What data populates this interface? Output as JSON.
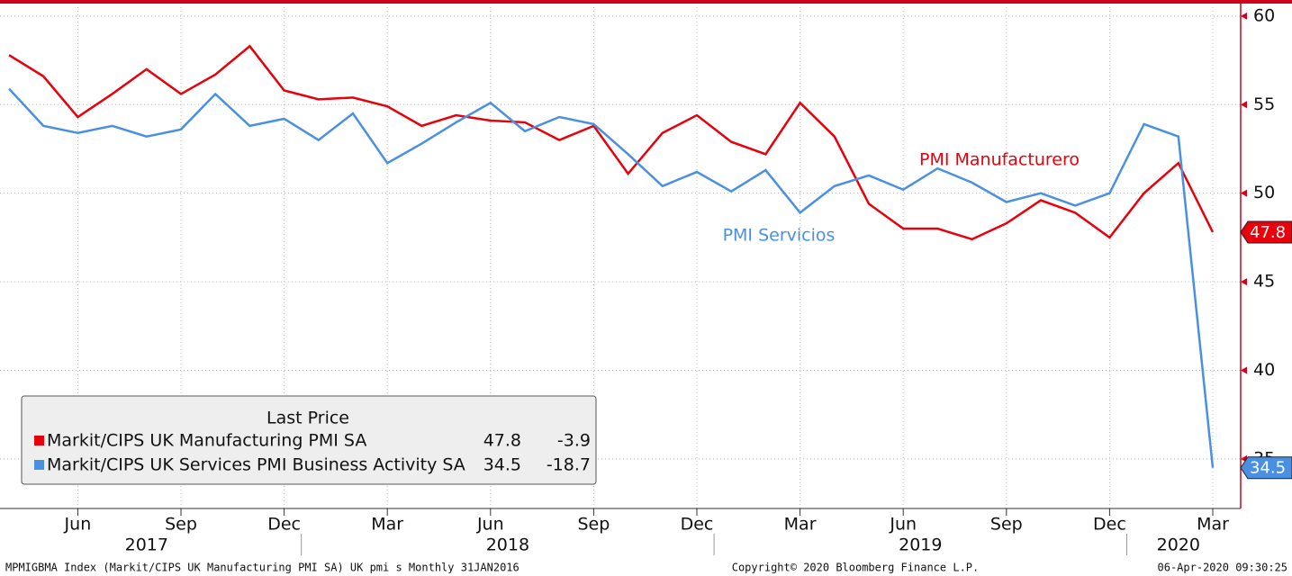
{
  "chart_data": {
    "type": "line",
    "x": [
      "2017-04",
      "2017-05",
      "2017-06",
      "2017-07",
      "2017-08",
      "2017-09",
      "2017-10",
      "2017-11",
      "2017-12",
      "2018-01",
      "2018-02",
      "2018-03",
      "2018-04",
      "2018-05",
      "2018-06",
      "2018-07",
      "2018-08",
      "2018-09",
      "2018-10",
      "2018-11",
      "2018-12",
      "2019-01",
      "2019-02",
      "2019-03",
      "2019-04",
      "2019-05",
      "2019-06",
      "2019-07",
      "2019-08",
      "2019-09",
      "2019-10",
      "2019-11",
      "2019-12",
      "2020-01",
      "2020-02",
      "2020-03"
    ],
    "series": [
      {
        "name": "Markit/CIPS UK Manufacturing PMI SA",
        "label": "PMI Manufacturero",
        "color": "#e8000b",
        "change": -3.9,
        "values": [
          57.8,
          56.6,
          54.3,
          55.6,
          57.0,
          55.6,
          56.7,
          58.3,
          55.8,
          55.3,
          55.4,
          54.9,
          53.8,
          54.4,
          54.1,
          54.0,
          53.0,
          53.8,
          51.1,
          53.4,
          54.4,
          52.9,
          52.2,
          55.1,
          53.2,
          49.4,
          48.0,
          48.0,
          47.4,
          48.3,
          49.6,
          48.9,
          47.5,
          50.0,
          51.7,
          47.8
        ]
      },
      {
        "name": "Markit/CIPS UK Services PMI Business Activity SA",
        "label": "PMI Servicios",
        "color": "#4a90e2",
        "change": -18.7,
        "values": [
          55.9,
          53.8,
          53.4,
          53.8,
          53.2,
          53.6,
          55.6,
          53.8,
          54.2,
          53.0,
          54.5,
          51.7,
          52.8,
          54.0,
          55.1,
          53.5,
          54.3,
          53.9,
          52.2,
          50.4,
          51.2,
          50.1,
          51.3,
          48.9,
          50.4,
          51.0,
          50.2,
          51.4,
          50.6,
          49.5,
          50.0,
          49.3,
          50.0,
          53.9,
          53.2,
          34.5
        ]
      }
    ],
    "ylim": [
      32.2,
      60.5
    ],
    "yticks": [
      35,
      40,
      45,
      50,
      55,
      60
    ],
    "xticks": [
      {
        "value": "2017-06",
        "label": "Jun"
      },
      {
        "value": "2017-09",
        "label": "Sep"
      },
      {
        "value": "2017-12",
        "label": "Dec"
      },
      {
        "value": "2018-03",
        "label": "Mar"
      },
      {
        "value": "2018-06",
        "label": "Jun"
      },
      {
        "value": "2018-09",
        "label": "Sep"
      },
      {
        "value": "2018-12",
        "label": "Dec"
      },
      {
        "value": "2019-03",
        "label": "Mar"
      },
      {
        "value": "2019-06",
        "label": "Jun"
      },
      {
        "value": "2019-09",
        "label": "Sep"
      },
      {
        "value": "2019-12",
        "label": "Dec"
      },
      {
        "value": "2020-03",
        "label": "Mar"
      }
    ],
    "years": [
      "2017",
      "2018",
      "2019",
      "2020"
    ],
    "legend_title": "Last Price",
    "grid": true
  },
  "footer": {
    "left": "MPMIGBMA Index (Markit/CIPS UK Manufacturing PMI SA) UK pmi s  Monthly 31JAN2016",
    "center": "Copyright© 2020 Bloomberg Finance L.P.",
    "right": "06-Apr-2020 09:30:25"
  }
}
